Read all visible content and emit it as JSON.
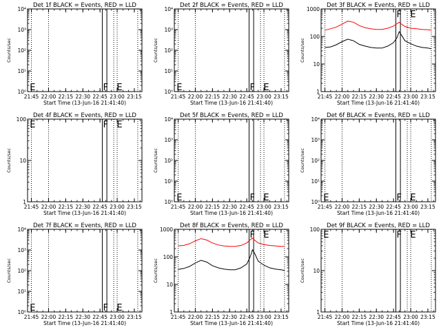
{
  "chart_data": [
    {
      "type": "line",
      "title": "Det 1f BLACK = Events, RED = LLD",
      "xlabel": "Start Time (13-Jun-16 21:41:40)",
      "ylabel": "Counts/sec",
      "yscale": "log",
      "ylim": [
        1,
        10000
      ],
      "ytick_labels": [
        "10⁰",
        "10¹",
        "10²",
        "10³",
        "10⁴"
      ],
      "xlim": [
        "21:41:40",
        "23:21:40"
      ],
      "xtick_labels": [
        "21:45",
        "22:00",
        "22:15",
        "22:30",
        "22:45",
        "23:00",
        "23:15"
      ],
      "dotted_vlines": [
        "21:45",
        "22:00",
        "22:57",
        "23:00",
        "23:18"
      ],
      "solid_vlines": [
        "22:47",
        "22:51"
      ],
      "markers": [
        {
          "label": "E",
          "x": "21:43"
        },
        {
          "label": "F",
          "x": "22:47"
        },
        {
          "label": "E",
          "x": "22:59"
        }
      ],
      "series": []
    },
    {
      "type": "line",
      "title": "Det 2f BLACK = Events, RED = LLD",
      "xlabel": "Start Time (13-Jun-16 21:41:40)",
      "ylabel": "Counts/sec",
      "yscale": "log",
      "ylim": [
        1,
        10000
      ],
      "ytick_labels": [
        "10⁰",
        "10¹",
        "10²",
        "10³",
        "10⁴"
      ],
      "xlim": [
        "21:41:40",
        "23:21:40"
      ],
      "xtick_labels": [
        "21:45",
        "22:00",
        "22:15",
        "22:30",
        "22:45",
        "23:00",
        "23:15"
      ],
      "dotted_vlines": [
        "21:45",
        "22:00",
        "22:57",
        "23:00",
        "23:18"
      ],
      "solid_vlines": [
        "22:47",
        "22:51"
      ],
      "markers": [
        {
          "label": "E",
          "x": "21:43"
        },
        {
          "label": "F",
          "x": "22:47"
        },
        {
          "label": "E",
          "x": "22:59"
        }
      ],
      "series": []
    },
    {
      "type": "line",
      "title": "Det 3f BLACK = Events, RED = LLD",
      "xlabel": "Start Time (13-Jun-16 21:41:40)",
      "ylabel": "Counts/sec",
      "yscale": "log",
      "ylim": [
        1,
        1000
      ],
      "ytick_labels": [
        "1",
        "10",
        "100",
        "1000"
      ],
      "xlim": [
        "21:41:40",
        "23:21:40"
      ],
      "xtick_labels": [
        "21:45",
        "22:00",
        "22:15",
        "22:30",
        "22:45",
        "23:00",
        "23:15"
      ],
      "dotted_vlines": [
        "21:45",
        "22:00",
        "22:57",
        "23:00",
        "23:18"
      ],
      "solid_vlines": [
        "22:47",
        "22:51"
      ],
      "markers": [
        {
          "label": "F",
          "x": "22:47"
        },
        {
          "label": "E",
          "x": "22:59"
        }
      ],
      "series": [
        {
          "color": "#ff0000",
          "x": [
            "21:45",
            "21:50",
            "21:55",
            "22:00",
            "22:05",
            "22:10",
            "22:15",
            "22:20",
            "22:25",
            "22:30",
            "22:35",
            "22:40",
            "22:45",
            "22:48",
            "22:50",
            "22:52",
            "22:55",
            "23:00",
            "23:05",
            "23:10",
            "23:15",
            "23:18"
          ],
          "values": [
            170,
            190,
            220,
            280,
            360,
            330,
            250,
            210,
            190,
            180,
            180,
            200,
            240,
            290,
            330,
            280,
            230,
            200,
            190,
            180,
            175,
            170
          ]
        },
        {
          "color": "#000000",
          "x": [
            "21:45",
            "21:50",
            "21:55",
            "22:00",
            "22:05",
            "22:10",
            "22:15",
            "22:20",
            "22:25",
            "22:30",
            "22:35",
            "22:40",
            "22:45",
            "22:48",
            "22:50",
            "22:52",
            "22:55",
            "23:00",
            "23:05",
            "23:10",
            "23:15",
            "23:18"
          ],
          "values": [
            40,
            42,
            50,
            65,
            80,
            70,
            52,
            45,
            40,
            38,
            38,
            45,
            60,
            90,
            150,
            110,
            70,
            55,
            45,
            40,
            38,
            36
          ]
        }
      ]
    },
    {
      "type": "line",
      "title": "Det 4f BLACK = Events, RED = LLD",
      "xlabel": "Start Time (13-Jun-16 21:41:40)",
      "ylabel": "Counts/sec",
      "yscale": "log",
      "ylim": [
        1,
        100
      ],
      "ytick_labels": [
        "1",
        "10",
        "100"
      ],
      "xlim": [
        "21:41:40",
        "23:21:40"
      ],
      "xtick_labels": [
        "21:45",
        "22:00",
        "22:15",
        "22:30",
        "22:45",
        "23:00",
        "23:15"
      ],
      "dotted_vlines": [
        "21:45",
        "22:00",
        "22:57",
        "23:00",
        "23:18"
      ],
      "solid_vlines": [
        "22:47",
        "22:51"
      ],
      "markers": [
        {
          "label": "E",
          "x": "21:43"
        },
        {
          "label": "F",
          "x": "22:47"
        },
        {
          "label": "E",
          "x": "22:59"
        }
      ],
      "series": []
    },
    {
      "type": "line",
      "title": "Det 5f BLACK = Events, RED = LLD",
      "xlabel": "Start Time (13-Jun-16 21:41:40)",
      "ylabel": "Counts/sec",
      "yscale": "log",
      "ylim": [
        1,
        10000
      ],
      "ytick_labels": [
        "10⁰",
        "10¹",
        "10²",
        "10³",
        "10⁴"
      ],
      "xlim": [
        "21:41:40",
        "23:21:40"
      ],
      "xtick_labels": [
        "21:45",
        "22:00",
        "22:15",
        "22:30",
        "22:45",
        "23:00",
        "23:15"
      ],
      "dotted_vlines": [
        "21:45",
        "22:00",
        "22:57",
        "23:00",
        "23:18"
      ],
      "solid_vlines": [
        "22:47",
        "22:51"
      ],
      "markers": [
        {
          "label": "E",
          "x": "21:43"
        },
        {
          "label": "F",
          "x": "22:47"
        },
        {
          "label": "E",
          "x": "22:59"
        }
      ],
      "series": []
    },
    {
      "type": "line",
      "title": "Det 6f BLACK = Events, RED = LLD",
      "xlabel": "Start Time (13-Jun-16 21:41:40)",
      "ylabel": "Counts/sec",
      "yscale": "log",
      "ylim": [
        1,
        10000
      ],
      "ytick_labels": [
        "10⁰",
        "10¹",
        "10²",
        "10³",
        "10⁴"
      ],
      "xlim": [
        "21:41:40",
        "23:21:40"
      ],
      "xtick_labels": [
        "21:45",
        "22:00",
        "22:15",
        "22:30",
        "22:45",
        "23:00",
        "23:15"
      ],
      "dotted_vlines": [
        "21:45",
        "22:00",
        "22:57",
        "23:00",
        "23:18"
      ],
      "solid_vlines": [
        "22:47",
        "22:51"
      ],
      "markers": [
        {
          "label": "E",
          "x": "21:43"
        },
        {
          "label": "F",
          "x": "22:47"
        },
        {
          "label": "E",
          "x": "22:59"
        }
      ],
      "series": []
    },
    {
      "type": "line",
      "title": "Det 7f BLACK = Events, RED = LLD",
      "xlabel": "Start Time (13-Jun-16 21:41:40)",
      "ylabel": "Counts/sec",
      "yscale": "log",
      "ylim": [
        1,
        10000
      ],
      "ytick_labels": [
        "10⁰",
        "10¹",
        "10²",
        "10³",
        "10⁴"
      ],
      "xlim": [
        "21:41:40",
        "23:21:40"
      ],
      "xtick_labels": [
        "21:45",
        "22:00",
        "22:15",
        "22:30",
        "22:45",
        "23:00",
        "23:15"
      ],
      "dotted_vlines": [
        "21:45",
        "22:00",
        "22:57",
        "23:00",
        "23:18"
      ],
      "solid_vlines": [
        "22:47",
        "22:51"
      ],
      "markers": [
        {
          "label": "E",
          "x": "21:43"
        },
        {
          "label": "F",
          "x": "22:47"
        },
        {
          "label": "E",
          "x": "22:59"
        }
      ],
      "series": []
    },
    {
      "type": "line",
      "title": "Det 8f BLACK = Events, RED = LLD",
      "xlabel": "Start Time (13-Jun-16 21:41:40)",
      "ylabel": "Counts/sec",
      "yscale": "log",
      "ylim": [
        1,
        1000
      ],
      "ytick_labels": [
        "1",
        "10",
        "100",
        "1000"
      ],
      "xlim": [
        "21:41:40",
        "23:21:40"
      ],
      "xtick_labels": [
        "21:45",
        "22:00",
        "22:15",
        "22:30",
        "22:45",
        "23:00",
        "23:15"
      ],
      "dotted_vlines": [
        "21:45",
        "22:00",
        "22:57",
        "23:00",
        "23:18"
      ],
      "solid_vlines": [
        "22:47",
        "22:51"
      ],
      "markers": [
        {
          "label": "F",
          "x": "22:47"
        },
        {
          "label": "E",
          "x": "22:59"
        }
      ],
      "series": [
        {
          "color": "#ff0000",
          "x": [
            "21:45",
            "21:50",
            "21:55",
            "22:00",
            "22:05",
            "22:10",
            "22:15",
            "22:20",
            "22:25",
            "22:30",
            "22:35",
            "22:40",
            "22:45",
            "22:48",
            "22:50",
            "22:52",
            "22:55",
            "23:00",
            "23:05",
            "23:10",
            "23:15",
            "23:18"
          ],
          "values": [
            250,
            260,
            300,
            380,
            460,
            410,
            320,
            270,
            250,
            240,
            240,
            260,
            320,
            420,
            480,
            400,
            320,
            280,
            260,
            250,
            240,
            240
          ]
        },
        {
          "color": "#000000",
          "x": [
            "21:45",
            "21:50",
            "21:55",
            "22:00",
            "22:05",
            "22:10",
            "22:15",
            "22:20",
            "22:25",
            "22:30",
            "22:35",
            "22:40",
            "22:45",
            "22:48",
            "22:50",
            "22:52",
            "22:55",
            "23:00",
            "23:05",
            "23:10",
            "23:15",
            "23:18"
          ],
          "values": [
            35,
            38,
            45,
            60,
            75,
            65,
            48,
            40,
            36,
            34,
            34,
            40,
            55,
            100,
            180,
            130,
            70,
            50,
            40,
            36,
            34,
            32
          ]
        }
      ]
    },
    {
      "type": "line",
      "title": "Det 9f BLACK = Events, RED = LLD",
      "xlabel": "Start Time (13-Jun-16 21:41:40)",
      "ylabel": "Counts/sec",
      "yscale": "log",
      "ylim": [
        1,
        100
      ],
      "ytick_labels": [
        "1",
        "10",
        "100"
      ],
      "xlim": [
        "21:41:40",
        "23:21:40"
      ],
      "xtick_labels": [
        "21:45",
        "22:00",
        "22:15",
        "22:30",
        "22:45",
        "23:00",
        "23:15"
      ],
      "dotted_vlines": [
        "21:45",
        "22:00",
        "22:57",
        "23:00",
        "23:18"
      ],
      "solid_vlines": [
        "22:47",
        "22:51"
      ],
      "markers": [
        {
          "label": "E",
          "x": "21:43"
        },
        {
          "label": "F",
          "x": "22:47"
        },
        {
          "label": "E",
          "x": "22:59"
        }
      ],
      "series": []
    }
  ]
}
